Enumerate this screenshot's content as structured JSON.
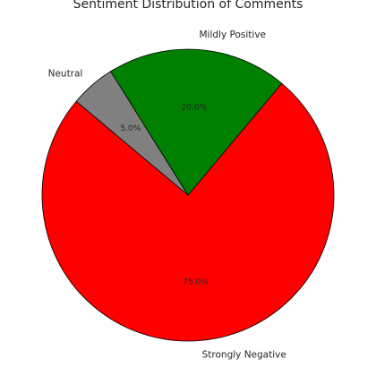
{
  "chart_data": {
    "type": "pie",
    "title": "Sentiment Distribution of Comments",
    "start_angle_deg": 140,
    "direction": "counterclockwise",
    "edge_color": "#000000",
    "slices": [
      {
        "label": "Strongly Negative",
        "value": 75.0,
        "pct_text": "75.0%",
        "color": "#ff0000"
      },
      {
        "label": "Mildly Positive",
        "value": 20.0,
        "pct_text": "20.0%",
        "color": "#008000"
      },
      {
        "label": "Neutral",
        "value": 5.0,
        "pct_text": "5.0%",
        "color": "#808080"
      }
    ]
  }
}
